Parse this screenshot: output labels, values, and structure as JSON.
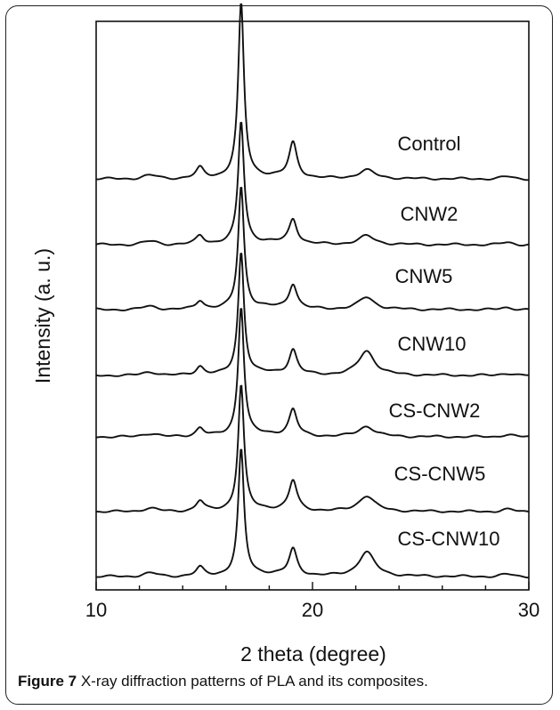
{
  "caption": {
    "label": "Figure 7",
    "text": " X-ray diffraction patterns of PLA and its composites."
  },
  "chart_data": {
    "type": "line",
    "title": "",
    "xlabel": "2 theta (degree)",
    "ylabel": "Intensity (a. u.)",
    "xlim": [
      10,
      30
    ],
    "x_ticks": [
      "10",
      "20",
      "30"
    ],
    "y_ticks_shown": false,
    "grid": false,
    "legend": "none (series labels printed above each trace)",
    "line_color": "#111111",
    "peaks_deg": [
      12.5,
      14.8,
      16.7,
      19.1,
      22.5,
      29.0
    ],
    "series": [
      {
        "name": "Control",
        "peaks": {
          "14.8": 0.06,
          "16.7": 1.0,
          "19.1": 0.2,
          "22.5": 0.05
        }
      },
      {
        "name": "CNW2",
        "peaks": {
          "14.8": 0.05,
          "16.7": 0.7,
          "19.1": 0.14,
          "22.5": 0.05
        }
      },
      {
        "name": "CNW5",
        "peaks": {
          "14.8": 0.05,
          "16.7": 0.7,
          "19.1": 0.14,
          "22.5": 0.07
        }
      },
      {
        "name": "CNW10",
        "peaks": {
          "14.8": 0.05,
          "16.7": 0.7,
          "19.1": 0.14,
          "22.5": 0.14
        }
      },
      {
        "name": "CS-CNW2",
        "peaks": {
          "14.8": 0.05,
          "16.7": 0.74,
          "19.1": 0.15,
          "22.5": 0.06
        }
      },
      {
        "name": "CS-CNW5",
        "peaks": {
          "14.8": 0.06,
          "16.7": 0.72,
          "19.1": 0.17,
          "22.5": 0.09
        }
      },
      {
        "name": "CS-CNW10",
        "peaks": {
          "14.8": 0.05,
          "16.7": 0.72,
          "19.1": 0.15,
          "22.5": 0.14
        }
      }
    ]
  }
}
